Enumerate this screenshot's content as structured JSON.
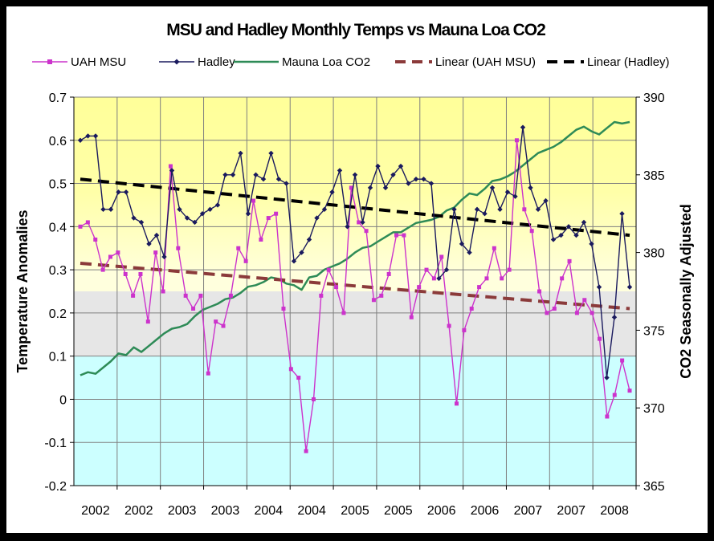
{
  "chart_data": {
    "type": "line",
    "title": "MSU and Hadley Monthly Temps vs Mauna Loa CO2",
    "ylabel": "Temperature Anomalies",
    "y2label": "CO2 Seasonally Adjusted",
    "ylim": [
      -0.2,
      0.7
    ],
    "y2lim": [
      365,
      390
    ],
    "yticks": [
      "0.7",
      "0.6",
      "0.5",
      "0.4",
      "0.3",
      "0.2",
      "0.1",
      "0",
      "-0.1",
      "-0.2"
    ],
    "y2ticks": [
      "390",
      "385",
      "380",
      "375",
      "370",
      "365"
    ],
    "xticks": [
      "2002",
      "2002",
      "2003",
      "2003",
      "2004",
      "2004",
      "2005",
      "2005",
      "2006",
      "2006",
      "2007",
      "2007",
      "2008"
    ],
    "grid": true,
    "legend_position": "top",
    "background_bands": [
      {
        "from": 0.3,
        "to": 0.7,
        "color": "#ffff99",
        "fade_to": "#ffffdd"
      },
      {
        "from": 0.25,
        "to": 0.3,
        "color": "#ffffdd"
      },
      {
        "from": 0.1,
        "to": 0.25,
        "color": "#e6e6e6"
      },
      {
        "from": -0.2,
        "to": 0.1,
        "color": "#ccffff"
      }
    ],
    "series": [
      {
        "name": "UAH MSU",
        "axis": "left",
        "color": "#cc33cc",
        "marker": "square",
        "values": [
          0.4,
          0.41,
          0.37,
          0.3,
          0.33,
          0.34,
          0.29,
          0.24,
          0.29,
          0.18,
          0.34,
          0.25,
          0.54,
          0.35,
          0.24,
          0.21,
          0.24,
          0.06,
          0.18,
          0.17,
          0.24,
          0.35,
          0.32,
          0.46,
          0.37,
          0.42,
          0.43,
          0.21,
          0.07,
          0.05,
          -0.12,
          0.0,
          0.24,
          0.3,
          0.26,
          0.2,
          0.49,
          0.41,
          0.39,
          0.23,
          0.24,
          0.29,
          0.38,
          0.38,
          0.19,
          0.26,
          0.3,
          0.28,
          0.33,
          0.17,
          -0.01,
          0.16,
          0.21,
          0.26,
          0.28,
          0.35,
          0.28,
          0.3,
          0.6,
          0.44,
          0.39,
          0.25,
          0.2,
          0.21,
          0.28,
          0.32,
          0.2,
          0.23,
          0.2,
          0.14,
          -0.04,
          0.01,
          0.09,
          0.02
        ]
      },
      {
        "name": "Hadley",
        "axis": "left",
        "color": "#1a1a5e",
        "marker": "diamond",
        "values": [
          0.6,
          0.61,
          0.61,
          0.44,
          0.44,
          0.48,
          0.48,
          0.42,
          0.41,
          0.36,
          0.38,
          0.33,
          0.53,
          0.44,
          0.42,
          0.41,
          0.43,
          0.44,
          0.45,
          0.52,
          0.52,
          0.57,
          0.43,
          0.52,
          0.51,
          0.57,
          0.51,
          0.5,
          0.32,
          0.34,
          0.37,
          0.42,
          0.44,
          0.48,
          0.53,
          0.4,
          0.52,
          0.41,
          0.49,
          0.54,
          0.49,
          0.52,
          0.54,
          0.5,
          0.51,
          0.51,
          0.5,
          0.28,
          0.3,
          0.44,
          0.36,
          0.34,
          0.44,
          0.43,
          0.49,
          0.44,
          0.48,
          0.47,
          0.63,
          0.49,
          0.44,
          0.46,
          0.37,
          0.38,
          0.4,
          0.38,
          0.41,
          0.36,
          0.26,
          0.05,
          0.19,
          0.43,
          0.26
        ]
      },
      {
        "name": "Mauna Loa CO2",
        "axis": "right",
        "color": "#2e8b57",
        "marker": "none",
        "values": [
          372.1,
          372.3,
          372.2,
          372.6,
          373.0,
          373.5,
          373.4,
          373.9,
          373.6,
          374.0,
          374.4,
          374.8,
          375.1,
          375.2,
          375.4,
          375.9,
          376.3,
          376.5,
          376.7,
          377.0,
          377.1,
          377.4,
          377.8,
          377.9,
          378.1,
          378.4,
          378.3,
          378.0,
          377.9,
          377.6,
          378.4,
          378.5,
          378.9,
          379.1,
          379.3,
          379.6,
          380.0,
          380.3,
          380.4,
          380.7,
          381.0,
          381.3,
          381.3,
          381.6,
          381.9,
          382.0,
          382.1,
          382.3,
          382.7,
          382.9,
          383.4,
          383.8,
          383.7,
          384.1,
          384.6,
          384.7,
          384.9,
          385.2,
          385.6,
          386.0,
          386.4,
          386.6,
          386.8,
          387.1,
          387.5,
          387.9,
          388.1,
          387.8,
          387.6,
          388.0,
          388.4,
          388.3,
          388.4
        ]
      },
      {
        "name": "Linear (UAH MSU)",
        "axis": "left",
        "color": "#8b3a3a",
        "style": "dashed",
        "values": [
          0.315,
          0.21
        ]
      },
      {
        "name": "Linear (Hadley)",
        "axis": "left",
        "color": "#000000",
        "style": "dashed",
        "values": [
          0.51,
          0.38
        ]
      }
    ]
  }
}
